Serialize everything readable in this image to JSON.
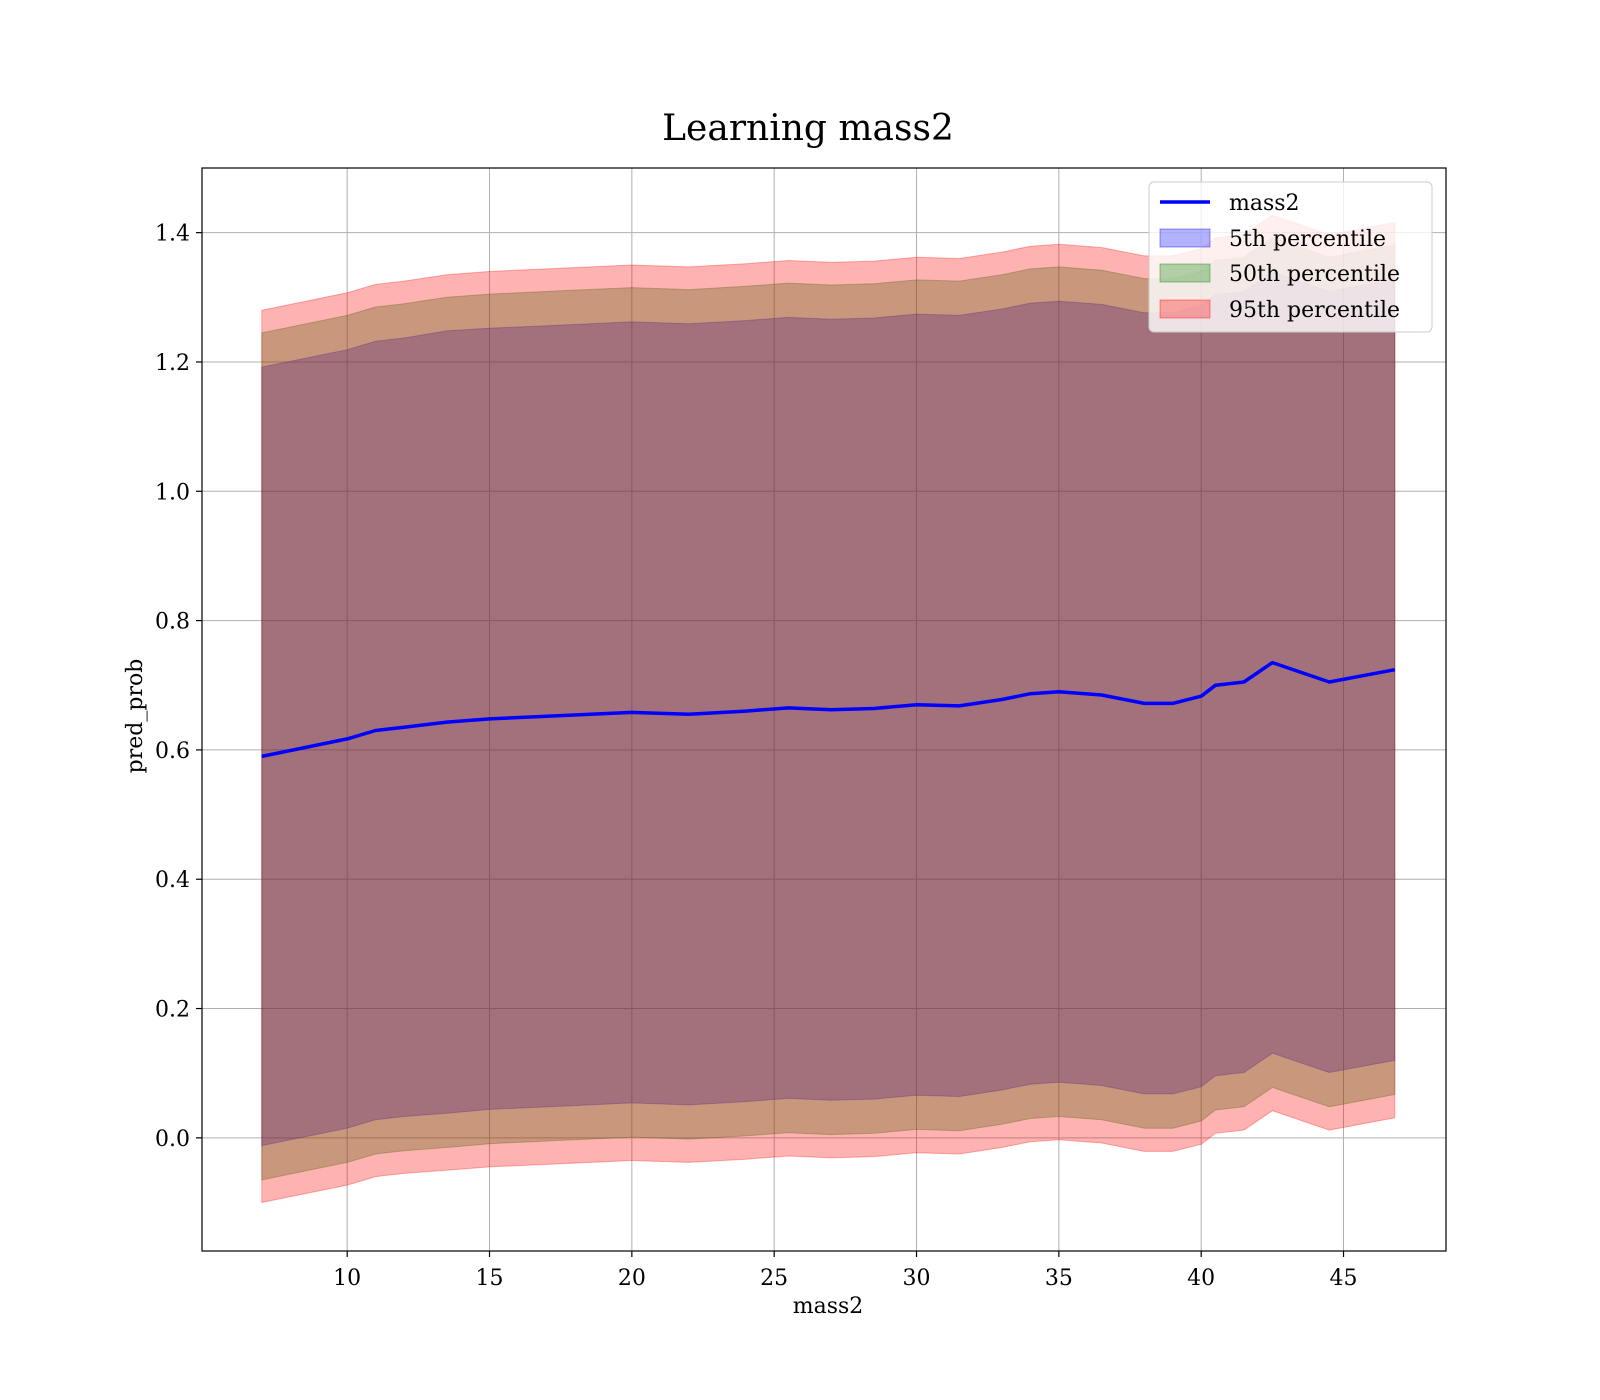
{
  "chart_data": {
    "type": "area",
    "title": "Learning mass2",
    "xlabel": "mass2",
    "ylabel": "pred_prob",
    "xlim": [
      4.9,
      48.6
    ],
    "ylim": [
      -0.175,
      1.5
    ],
    "xticks": [
      10,
      15,
      20,
      25,
      30,
      35,
      40,
      45
    ],
    "yticks": [
      0.0,
      0.2,
      0.4,
      0.6,
      0.8,
      1.0,
      1.2,
      1.4
    ],
    "grid": true,
    "legend_position": "upper right",
    "colors": {
      "line": "#0000ff",
      "band_5": "#0000ff",
      "band_50": "#008000",
      "band_95": "#ff0000",
      "grid": "#b0b0b0"
    },
    "x": [
      7,
      10,
      11,
      12,
      13.5,
      15,
      17.5,
      20,
      22,
      24,
      25.5,
      27,
      28.5,
      30,
      31.5,
      33,
      34,
      35,
      36.5,
      38,
      39,
      40,
      40.5,
      41.5,
      42.5,
      44.5,
      46.8
    ],
    "series": [
      {
        "name": "mass2",
        "kind": "line",
        "values": [
          0.59,
          0.617,
          0.63,
          0.635,
          0.643,
          0.648,
          0.653,
          0.658,
          0.655,
          0.66,
          0.665,
          0.662,
          0.664,
          0.67,
          0.668,
          0.678,
          0.687,
          0.69,
          0.685,
          0.672,
          0.672,
          0.683,
          0.7,
          0.705,
          0.735,
          0.705,
          0.724
        ]
      },
      {
        "name": "5th percentile",
        "kind": "band",
        "lower": [
          -0.012,
          0.015,
          0.028,
          0.033,
          0.038,
          0.044,
          0.049,
          0.054,
          0.051,
          0.056,
          0.061,
          0.058,
          0.06,
          0.066,
          0.064,
          0.074,
          0.083,
          0.086,
          0.081,
          0.068,
          0.068,
          0.079,
          0.096,
          0.101,
          0.131,
          0.101,
          0.12
        ],
        "upper": [
          1.192,
          1.219,
          1.232,
          1.237,
          1.248,
          1.252,
          1.257,
          1.262,
          1.259,
          1.264,
          1.269,
          1.266,
          1.268,
          1.274,
          1.272,
          1.282,
          1.291,
          1.294,
          1.289,
          1.276,
          1.276,
          1.287,
          1.304,
          1.309,
          1.339,
          1.309,
          1.328
        ]
      },
      {
        "name": "50th percentile",
        "kind": "band",
        "lower": [
          -0.065,
          -0.038,
          -0.025,
          -0.02,
          -0.015,
          -0.009,
          -0.004,
          0.001,
          -0.002,
          0.003,
          0.008,
          0.005,
          0.007,
          0.013,
          0.011,
          0.021,
          0.03,
          0.033,
          0.028,
          0.015,
          0.015,
          0.026,
          0.043,
          0.048,
          0.078,
          0.048,
          0.067
        ],
        "upper": [
          1.245,
          1.272,
          1.285,
          1.29,
          1.3,
          1.305,
          1.31,
          1.315,
          1.312,
          1.317,
          1.322,
          1.319,
          1.321,
          1.327,
          1.325,
          1.335,
          1.344,
          1.347,
          1.342,
          1.329,
          1.329,
          1.34,
          1.357,
          1.362,
          1.392,
          1.362,
          1.381
        ]
      },
      {
        "name": "95th percentile",
        "kind": "band",
        "lower": [
          -0.1,
          -0.073,
          -0.06,
          -0.055,
          -0.05,
          -0.045,
          -0.04,
          -0.035,
          -0.038,
          -0.033,
          -0.028,
          -0.031,
          -0.029,
          -0.023,
          -0.025,
          -0.015,
          -0.006,
          -0.003,
          -0.008,
          -0.021,
          -0.021,
          -0.01,
          0.007,
          0.012,
          0.042,
          0.012,
          0.031
        ],
        "upper": [
          1.28,
          1.307,
          1.32,
          1.325,
          1.335,
          1.34,
          1.345,
          1.35,
          1.347,
          1.352,
          1.357,
          1.354,
          1.356,
          1.362,
          1.36,
          1.37,
          1.379,
          1.382,
          1.377,
          1.364,
          1.364,
          1.375,
          1.392,
          1.397,
          1.427,
          1.397,
          1.416
        ]
      }
    ]
  }
}
